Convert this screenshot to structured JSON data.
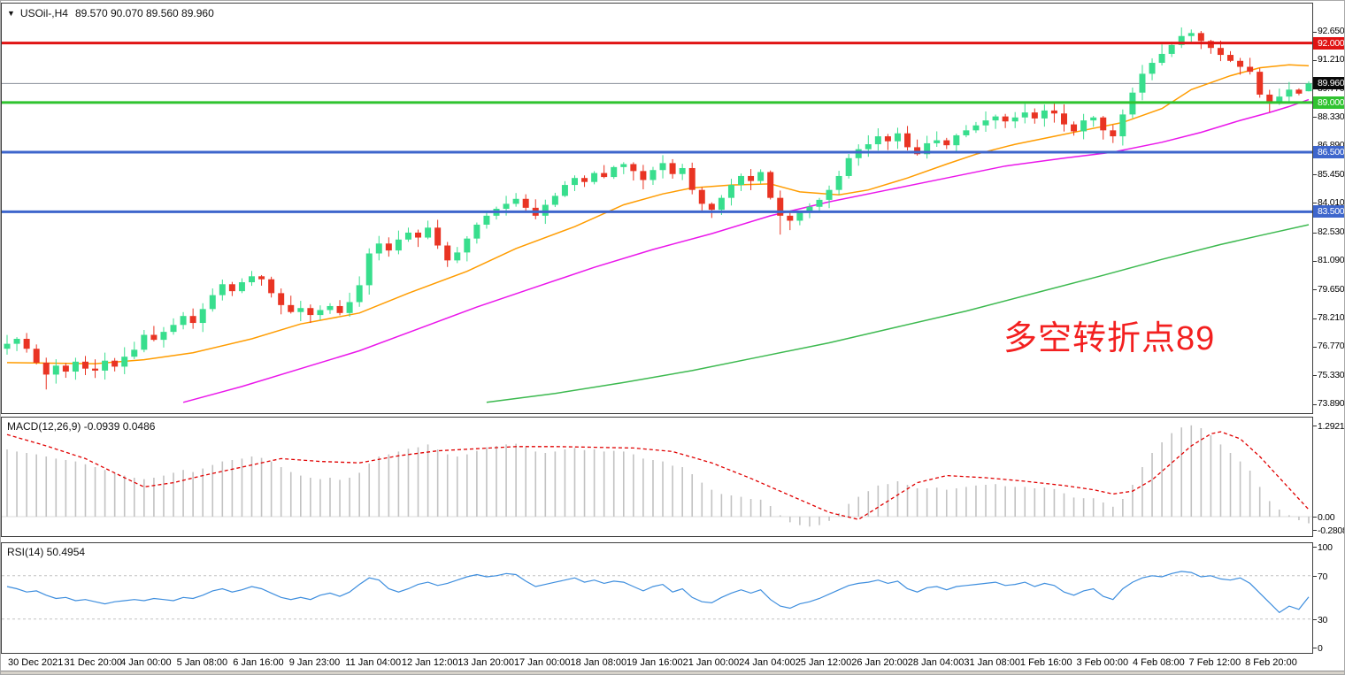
{
  "title": {
    "symbol": "USOil-,H4",
    "quote": "89.570 90.070 89.560 89.960"
  },
  "annotation": {
    "text": "多空转折点89",
    "color": "#f32020"
  },
  "palette": {
    "bull": "#38de8d",
    "bear": "#e93423",
    "wick_bull": "#38de8d",
    "wick_bear": "#e93423",
    "current_line": "#8a9099",
    "current_badge_bg": "#0a0a0a",
    "macd_bar": "#c2c2c2",
    "macd_zero": "#dcdcdc",
    "rsi_levels": "#c2c2c2",
    "text": "#000000",
    "background": "#ffffff"
  },
  "x_axis": {
    "labels": [
      "30 Dec 2021",
      "31 Dec 20:00",
      "4 Jan 00:00",
      "5 Jan 08:00",
      "6 Jan 16:00",
      "9 Jan 23:00",
      "11 Jan 04:00",
      "12 Jan 12:00",
      "13 Jan 20:00",
      "17 Jan 00:00",
      "18 Jan 08:00",
      "19 Jan 16:00",
      "21 Jan 00:00",
      "24 Jan 04:00",
      "25 Jan 12:00",
      "26 Jan 20:00",
      "28 Jan 04:00",
      "31 Jan 08:00",
      "1 Feb 16:00",
      "3 Feb 00:00",
      "4 Feb 08:00",
      "7 Feb 12:00",
      "8 Feb 20:00"
    ]
  },
  "chart_data": [
    {
      "id": "price",
      "type": "candlestick",
      "symbol": "USOil-",
      "timeframe": "H4",
      "title": "USOil-,H4 89.570 90.070 89.560 89.960",
      "ylim": [
        73.3,
        93.4
      ],
      "y_axis_ticks": [
        "92.650",
        "92.000",
        "91.210",
        "89.960",
        "89.770",
        "89.000",
        "88.330",
        "86.890",
        "86.500",
        "85.450",
        "84.010",
        "83.500",
        "82.530",
        "81.090",
        "79.650",
        "78.210",
        "76.770",
        "75.330",
        "73.890"
      ],
      "scale_tick_values": [
        92.65,
        91.21,
        89.77,
        88.33,
        86.89,
        85.45,
        84.01,
        82.53,
        81.09,
        79.65,
        78.21,
        76.77,
        75.33,
        73.89
      ],
      "first_open": 76.6,
      "closes": [
        76.85,
        77.1,
        76.6,
        75.9,
        75.3,
        75.75,
        75.45,
        75.95,
        75.6,
        75.5,
        76.0,
        75.7,
        76.2,
        76.55,
        77.3,
        77.05,
        77.45,
        77.8,
        78.25,
        77.9,
        78.6,
        79.3,
        79.85,
        79.5,
        79.95,
        80.25,
        80.1,
        79.4,
        78.8,
        78.45,
        78.65,
        78.3,
        78.55,
        78.75,
        78.4,
        78.95,
        79.8,
        81.4,
        81.9,
        81.55,
        82.1,
        82.45,
        82.2,
        82.7,
        81.8,
        81.05,
        81.45,
        82.15,
        82.85,
        83.3,
        83.65,
        83.9,
        84.15,
        83.7,
        83.3,
        83.85,
        84.3,
        84.85,
        85.2,
        85.0,
        85.45,
        85.25,
        85.75,
        85.9,
        85.55,
        85.1,
        85.6,
        85.95,
        85.4,
        85.7,
        84.6,
        83.9,
        83.6,
        84.2,
        84.85,
        85.3,
        85.05,
        85.5,
        84.2,
        83.3,
        83.05,
        83.45,
        83.75,
        84.1,
        84.6,
        85.3,
        86.2,
        86.65,
        86.9,
        87.3,
        87.05,
        87.45,
        86.75,
        86.4,
        86.95,
        87.1,
        86.85,
        87.35,
        87.6,
        87.85,
        88.1,
        88.3,
        88.05,
        88.25,
        88.5,
        88.2,
        88.6,
        88.45,
        87.9,
        87.55,
        88.1,
        88.25,
        87.6,
        87.3,
        88.4,
        89.5,
        90.45,
        91.0,
        91.45,
        91.9,
        92.35,
        92.5,
        92.1,
        91.75,
        91.4,
        91.1,
        90.8,
        90.55,
        89.4,
        88.95,
        89.3,
        89.65,
        89.45,
        89.96
      ],
      "last_ohlc": {
        "open": 89.57,
        "high": 90.07,
        "low": 89.56,
        "close": 89.96
      },
      "wick_overrides": {
        "4": {
          "low": 74.55
        },
        "67": {
          "high": 86.35
        },
        "79": {
          "low": 82.35
        },
        "120": {
          "high": 92.78
        },
        "121": {
          "high": 92.68
        },
        "129": {
          "low": 88.52
        }
      },
      "current": {
        "label": "89.960",
        "value": 89.96
      },
      "levels": [
        {
          "label": "92.000",
          "value": 92.0,
          "color": "#e01313"
        },
        {
          "label": "89.000",
          "value": 89.0,
          "color": "#2fc32f"
        },
        {
          "label": "86.500",
          "value": 86.5,
          "color": "#3e66cc"
        },
        {
          "label": "83.500",
          "value": 83.5,
          "color": "#3e66cc"
        }
      ],
      "moving_averages": [
        {
          "name": "ma-fast",
          "color": "#ff9c00",
          "points": [
            [
              0,
              75.9
            ],
            [
              9,
              75.85
            ],
            [
              14,
              76.05
            ],
            [
              19,
              76.4
            ],
            [
              25,
              77.1
            ],
            [
              30,
              77.85
            ],
            [
              36,
              78.4
            ],
            [
              41,
              79.4
            ],
            [
              47,
              80.5
            ],
            [
              52,
              81.65
            ],
            [
              58,
              82.75
            ],
            [
              63,
              83.85
            ],
            [
              67,
              84.4
            ],
            [
              70,
              84.7
            ],
            [
              74,
              84.85
            ],
            [
              78,
              84.9
            ],
            [
              81,
              84.5
            ],
            [
              85,
              84.35
            ],
            [
              88,
              84.6
            ],
            [
              92,
              85.2
            ],
            [
              96,
              85.9
            ],
            [
              99,
              86.4
            ],
            [
              103,
              86.9
            ],
            [
              107,
              87.3
            ],
            [
              110,
              87.6
            ],
            [
              114,
              88.0
            ],
            [
              118,
              88.7
            ],
            [
              121,
              89.65
            ],
            [
              125,
              90.35
            ],
            [
              128,
              90.75
            ],
            [
              131,
              90.9
            ],
            [
              133,
              90.85
            ]
          ]
        },
        {
          "name": "ma-mid",
          "color": "#ea16ea",
          "points": [
            [
              18,
              73.9
            ],
            [
              24,
              74.7
            ],
            [
              30,
              75.6
            ],
            [
              36,
              76.5
            ],
            [
              42,
              77.6
            ],
            [
              48,
              78.7
            ],
            [
              54,
              79.7
            ],
            [
              60,
              80.7
            ],
            [
              66,
              81.6
            ],
            [
              72,
              82.4
            ],
            [
              78,
              83.3
            ],
            [
              84,
              84.0
            ],
            [
              90,
              84.6
            ],
            [
              96,
              85.2
            ],
            [
              102,
              85.8
            ],
            [
              108,
              86.2
            ],
            [
              113,
              86.5
            ],
            [
              118,
              87.0
            ],
            [
              122,
              87.5
            ],
            [
              126,
              88.1
            ],
            [
              129,
              88.5
            ],
            [
              131,
              88.8
            ],
            [
              133,
              89.15
            ]
          ]
        },
        {
          "name": "ma-slow",
          "color": "#3cb94f",
          "points": [
            [
              49,
              73.9
            ],
            [
              56,
              74.35
            ],
            [
              63,
              74.9
            ],
            [
              70,
              75.5
            ],
            [
              77,
              76.2
            ],
            [
              84,
              76.9
            ],
            [
              91,
              77.7
            ],
            [
              98,
              78.5
            ],
            [
              105,
              79.4
            ],
            [
              112,
              80.3
            ],
            [
              118,
              81.1
            ],
            [
              124,
              81.85
            ],
            [
              128,
              82.3
            ],
            [
              133,
              82.85
            ]
          ]
        }
      ]
    },
    {
      "id": "macd",
      "type": "bar",
      "label": "MACD(12,26,9) -0.0939 0.0486",
      "current_macd": -0.0939,
      "current_signal": 0.0486,
      "scale": [
        "1.2921",
        "0.00",
        "-0.2808"
      ],
      "scale_values": [
        1.2921,
        0.0,
        -0.2808
      ],
      "bar_color": "#c2c2c2",
      "signal_color": "#e00000",
      "values": [
        0.95,
        0.92,
        0.9,
        0.88,
        0.85,
        0.82,
        0.8,
        0.78,
        0.74,
        0.7,
        0.66,
        0.62,
        0.58,
        0.55,
        0.53,
        0.55,
        0.58,
        0.62,
        0.66,
        0.63,
        0.68,
        0.73,
        0.78,
        0.8,
        0.82,
        0.85,
        0.83,
        0.78,
        0.7,
        0.63,
        0.58,
        0.55,
        0.53,
        0.55,
        0.52,
        0.55,
        0.62,
        0.75,
        0.85,
        0.88,
        0.92,
        0.96,
        0.98,
        1.02,
        0.95,
        0.88,
        0.85,
        0.88,
        0.93,
        0.98,
        1.0,
        1.02,
        1.03,
        0.98,
        0.92,
        0.9,
        0.92,
        0.95,
        0.97,
        0.94,
        0.95,
        0.92,
        0.93,
        0.92,
        0.88,
        0.82,
        0.8,
        0.78,
        0.72,
        0.7,
        0.6,
        0.48,
        0.38,
        0.32,
        0.3,
        0.28,
        0.25,
        0.24,
        0.15,
        0.02,
        -0.08,
        -0.12,
        -0.14,
        -0.12,
        -0.06,
        0.05,
        0.18,
        0.28,
        0.36,
        0.44,
        0.46,
        0.5,
        0.45,
        0.4,
        0.4,
        0.41,
        0.38,
        0.4,
        0.42,
        0.44,
        0.45,
        0.46,
        0.43,
        0.42,
        0.42,
        0.4,
        0.41,
        0.39,
        0.33,
        0.27,
        0.26,
        0.26,
        0.2,
        0.14,
        0.25,
        0.45,
        0.7,
        0.9,
        1.05,
        1.18,
        1.26,
        1.29,
        1.25,
        1.15,
        1.02,
        0.9,
        0.78,
        0.65,
        0.42,
        0.22,
        0.1,
        0.02,
        -0.05,
        -0.094
      ],
      "signal_points": [
        [
          0,
          1.16
        ],
        [
          4,
          1.0
        ],
        [
          8,
          0.82
        ],
        [
          12,
          0.55
        ],
        [
          14,
          0.42
        ],
        [
          17,
          0.48
        ],
        [
          20,
          0.58
        ],
        [
          24,
          0.7
        ],
        [
          28,
          0.82
        ],
        [
          32,
          0.78
        ],
        [
          36,
          0.76
        ],
        [
          40,
          0.86
        ],
        [
          44,
          0.93
        ],
        [
          48,
          0.96
        ],
        [
          52,
          0.99
        ],
        [
          56,
          0.99
        ],
        [
          60,
          0.98
        ],
        [
          64,
          0.97
        ],
        [
          68,
          0.92
        ],
        [
          72,
          0.76
        ],
        [
          76,
          0.54
        ],
        [
          80,
          0.3
        ],
        [
          84,
          0.06
        ],
        [
          87,
          -0.04
        ],
        [
          90,
          0.22
        ],
        [
          93,
          0.48
        ],
        [
          96,
          0.58
        ],
        [
          100,
          0.55
        ],
        [
          104,
          0.5
        ],
        [
          108,
          0.44
        ],
        [
          111,
          0.38
        ],
        [
          113,
          0.32
        ],
        [
          115,
          0.36
        ],
        [
          117,
          0.52
        ],
        [
          119,
          0.76
        ],
        [
          121,
          1.0
        ],
        [
          123,
          1.17
        ],
        [
          124,
          1.2
        ],
        [
          126,
          1.1
        ],
        [
          128,
          0.85
        ],
        [
          130,
          0.55
        ],
        [
          132,
          0.25
        ],
        [
          133,
          0.1
        ]
      ]
    },
    {
      "id": "rsi",
      "type": "line",
      "label": "RSI(14) 50.4954",
      "current": 50.4954,
      "scale": [
        "100",
        "70",
        "30",
        "0"
      ],
      "levels": [
        70,
        30
      ],
      "line_color": "#3e8ede",
      "ylim": [
        0,
        100
      ],
      "values": [
        60,
        58,
        55,
        56,
        52,
        49,
        50,
        47,
        48,
        46,
        44,
        46,
        47,
        48,
        47,
        49,
        48,
        47,
        50,
        49,
        52,
        56,
        58,
        55,
        57,
        60,
        58,
        54,
        50,
        48,
        50,
        48,
        52,
        54,
        51,
        55,
        62,
        68,
        66,
        58,
        55,
        58,
        62,
        64,
        61,
        63,
        66,
        69,
        71,
        69,
        70,
        72,
        71,
        65,
        60,
        62,
        64,
        66,
        68,
        64,
        66,
        63,
        65,
        64,
        60,
        56,
        60,
        62,
        55,
        58,
        50,
        46,
        45,
        50,
        54,
        57,
        54,
        57,
        48,
        42,
        40,
        44,
        46,
        49,
        53,
        57,
        61,
        63,
        64,
        66,
        63,
        65,
        58,
        55,
        59,
        60,
        57,
        60,
        61,
        62,
        63,
        64,
        61,
        62,
        64,
        60,
        63,
        61,
        55,
        52,
        56,
        58,
        51,
        48,
        58,
        64,
        68,
        70,
        69,
        72,
        74,
        73,
        69,
        70,
        67,
        66,
        68,
        63,
        54,
        45,
        36,
        42,
        39,
        50.5
      ]
    }
  ]
}
